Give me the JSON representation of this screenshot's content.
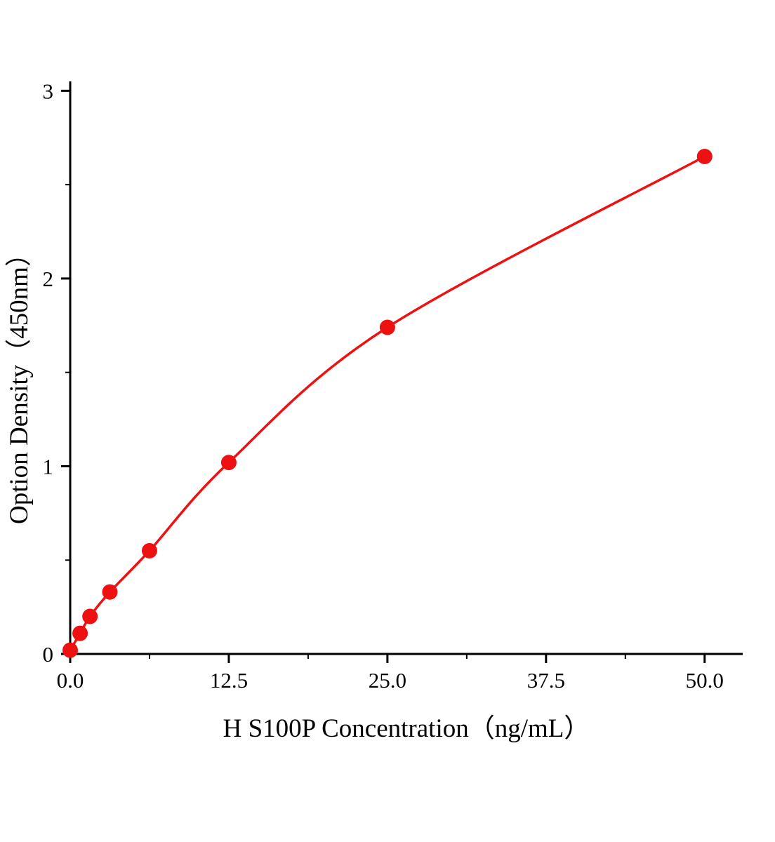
{
  "chart_data": {
    "type": "line",
    "title": "",
    "xlabel": "H S100P Concentration（ng/mL）",
    "ylabel": "Option Density（450nm）",
    "x": [
      0,
      0.78,
      1.56,
      3.125,
      6.25,
      12.5,
      25,
      50
    ],
    "y": [
      0.02,
      0.11,
      0.2,
      0.33,
      0.55,
      1.02,
      1.74,
      2.65
    ],
    "xlim": [
      0,
      53
    ],
    "ylim": [
      0,
      3.05
    ],
    "x_major_ticks": [
      0,
      12.5,
      25,
      37.5,
      50
    ],
    "x_tick_labels": [
      "0.0",
      "12.5",
      "25.0",
      "37.5",
      "50.0"
    ],
    "y_major_ticks": [
      0,
      1,
      2,
      3
    ],
    "y_tick_labels": [
      "0",
      "1",
      "2",
      "3"
    ],
    "x_minor_step": 6.25,
    "y_minor_step": 0.5,
    "grid": false,
    "legend": "none",
    "line_color": "#ee1111",
    "marker_color": "#ee1111",
    "axis_color": "#000000",
    "marker_radius": 11
  }
}
